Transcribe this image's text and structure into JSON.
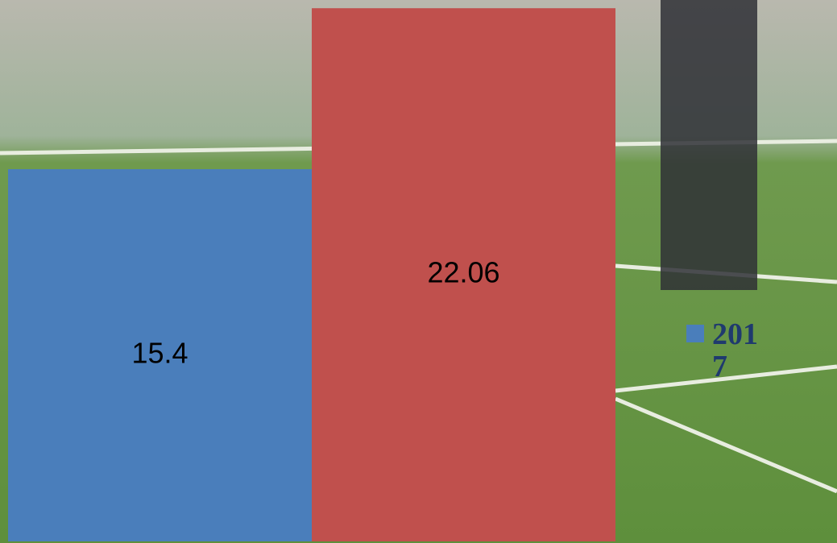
{
  "chart_data": {
    "type": "bar",
    "series": [
      {
        "name": "2017",
        "color": "#4a7ebb",
        "values": [
          15.4
        ]
      },
      {
        "color": "#c0504d",
        "values": [
          22.06
        ]
      }
    ],
    "ylim": [
      0,
      22.4
    ]
  }
}
